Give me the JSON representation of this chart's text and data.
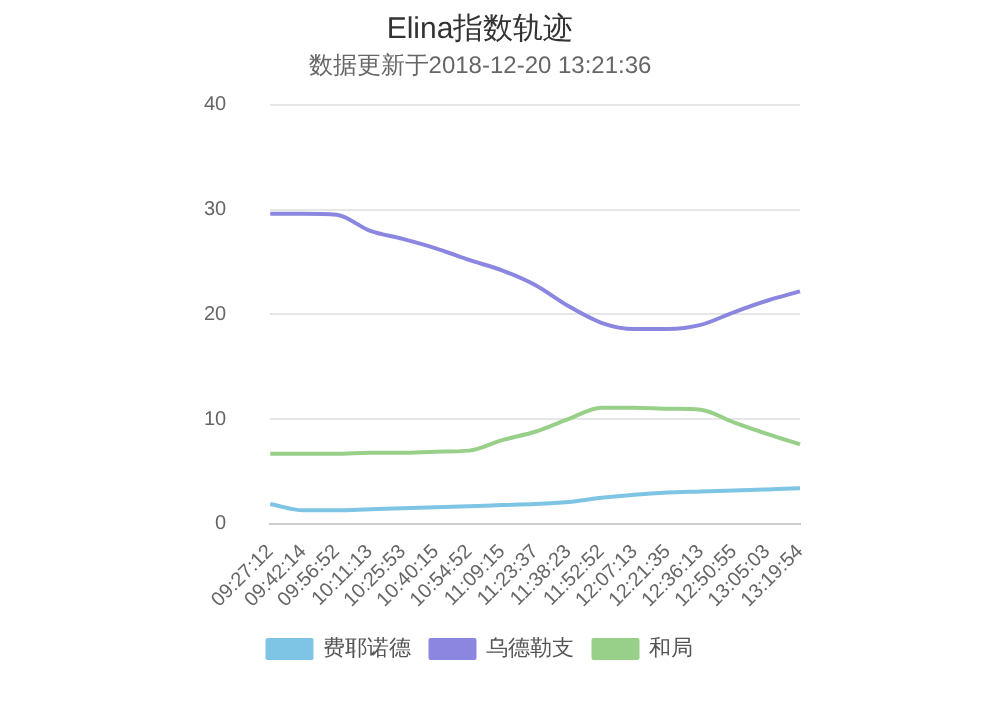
{
  "chart_data": {
    "type": "line",
    "title": "Elina指数轨迹",
    "subtitle": "数据更新于2018-12-20 13:21:36",
    "categories": [
      "09:27:12",
      "09:42:14",
      "09:56:52",
      "10:11:13",
      "10:25:53",
      "10:40:15",
      "10:54:52",
      "11:09:15",
      "11:23:37",
      "11:38:23",
      "11:52:52",
      "12:07:13",
      "12:21:35",
      "12:36:13",
      "12:50:55",
      "13:05:03",
      "13:19:54"
    ],
    "series": [
      {
        "name": "费耶诺德",
        "color": "#7ec4e4",
        "values": [
          1.9,
          1.3,
          1.3,
          1.4,
          1.5,
          1.6,
          1.7,
          1.8,
          1.9,
          2.1,
          2.5,
          2.8,
          3.0,
          3.1,
          3.2,
          3.3,
          3.4
        ]
      },
      {
        "name": "乌德勒支",
        "color": "#8b87e0",
        "values": [
          29.6,
          29.6,
          29.5,
          28.0,
          27.2,
          26.3,
          25.2,
          24.2,
          22.8,
          20.8,
          19.2,
          18.6,
          18.6,
          19.0,
          20.2,
          21.3,
          22.2
        ]
      },
      {
        "name": "和局",
        "color": "#98d08a",
        "values": [
          6.7,
          6.7,
          6.7,
          6.8,
          6.8,
          6.9,
          7.0,
          8.0,
          8.8,
          10.0,
          11.1,
          11.1,
          11.0,
          10.9,
          9.7,
          8.6,
          7.6
        ]
      }
    ],
    "ylim": [
      0,
      40
    ],
    "yticks": [
      0,
      10,
      20,
      30,
      40
    ],
    "grid": "y",
    "legend": "bottom",
    "marker": "none",
    "line_style": "solid"
  }
}
